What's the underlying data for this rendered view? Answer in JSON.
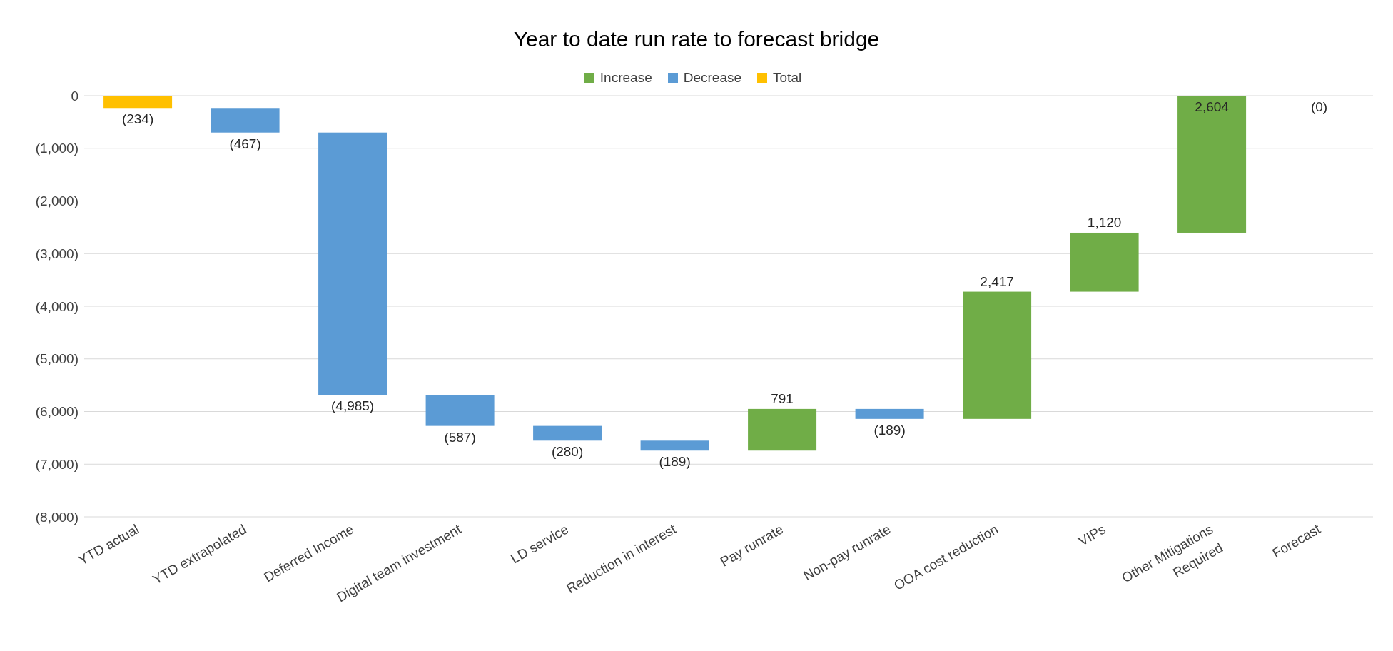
{
  "chart_data": {
    "type": "bar",
    "title": "Year to date run rate to forecast bridge",
    "categories": [
      "YTD actual",
      "YTD extrapolated",
      "Deferred Income",
      "Digital team investment",
      "LD service",
      "Reduction in interest",
      "Pay runrate",
      "Non-pay runrate",
      "OOA cost reduction",
      "VIPs",
      "Other Mitigations Required",
      "Forecast"
    ],
    "series": [
      {
        "name": "Increase",
        "color": "#70ad47",
        "values": [
          null,
          null,
          null,
          null,
          null,
          null,
          791,
          null,
          2417,
          1120,
          2604,
          null
        ],
        "base": [
          null,
          null,
          null,
          null,
          null,
          null,
          -6742,
          null,
          -6140,
          -3723,
          -2603,
          null
        ],
        "value_labels": [
          null,
          null,
          null,
          null,
          null,
          null,
          "791",
          null,
          "2,417",
          "1,120",
          "2,604",
          null
        ]
      },
      {
        "name": "Decrease",
        "color": "#5b9bd5",
        "values": [
          null,
          -467,
          -4985,
          -587,
          -280,
          -189,
          null,
          -189,
          null,
          null,
          null,
          null
        ],
        "base": [
          null,
          -234,
          -701,
          -5686,
          -6273,
          -6553,
          null,
          -5951,
          null,
          null,
          null,
          null
        ],
        "value_labels": [
          null,
          "(467)",
          "(4,985)",
          "(587)",
          "(280)",
          "(189)",
          null,
          "(189)",
          null,
          null,
          null,
          null
        ]
      },
      {
        "name": "Total",
        "color": "#ffc000",
        "values": [
          -234,
          null,
          null,
          null,
          null,
          null,
          null,
          null,
          null,
          null,
          null,
          0
        ],
        "base": [
          0,
          null,
          null,
          null,
          null,
          null,
          null,
          null,
          null,
          null,
          null,
          null
        ],
        "value_labels": [
          "(234)",
          null,
          null,
          null,
          null,
          null,
          null,
          null,
          null,
          null,
          null,
          "(0)"
        ]
      }
    ],
    "ylim": [
      -8000,
      0
    ],
    "yticks": [
      {
        "value": 0,
        "label": "0"
      },
      {
        "value": -1000,
        "label": "(1,000)"
      },
      {
        "value": -2000,
        "label": "(2,000)"
      },
      {
        "value": -3000,
        "label": "(3,000)"
      },
      {
        "value": -4000,
        "label": "(4,000)"
      },
      {
        "value": -5000,
        "label": "(5,000)"
      },
      {
        "value": -6000,
        "label": "(6,000)"
      },
      {
        "value": -7000,
        "label": "(7,000)"
      },
      {
        "value": -8000,
        "label": "(8,000)"
      }
    ],
    "grid": "y",
    "legend": "top"
  }
}
